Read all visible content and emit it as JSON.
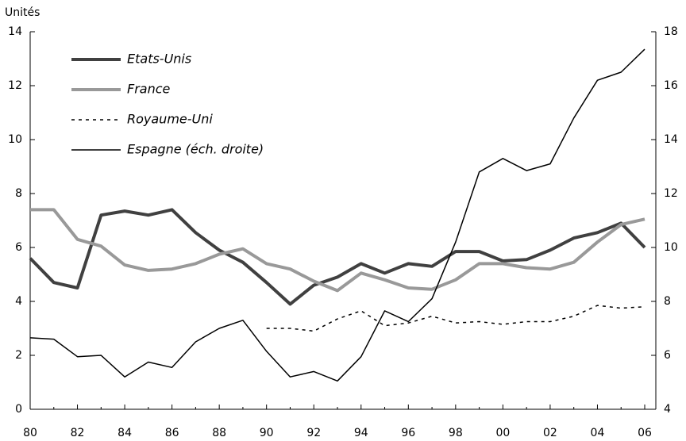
{
  "chart_data": {
    "type": "line",
    "y_label": "Unités",
    "categories": [
      "80",
      null,
      "82",
      null,
      "84",
      null,
      "86",
      null,
      "88",
      null,
      "90",
      null,
      "92",
      null,
      "94",
      null,
      "96",
      null,
      "98",
      null,
      "00",
      null,
      "02",
      null,
      "04",
      null,
      "06"
    ],
    "ylim": [
      0,
      14
    ],
    "yticks": [
      0,
      2,
      4,
      6,
      8,
      10,
      12,
      14
    ],
    "y2lim": [
      4,
      18
    ],
    "y2ticks": [
      4,
      6,
      8,
      10,
      12,
      14,
      16,
      18
    ],
    "legend": "top-left",
    "series": [
      {
        "name": "Etats-Unis",
        "color": "#404040",
        "width": 4,
        "dashed": false,
        "values": [
          5.6,
          4.7,
          4.5,
          7.2,
          7.35,
          7.2,
          7.4,
          6.55,
          5.9,
          5.45,
          4.7,
          3.9,
          4.6,
          4.9,
          5.4,
          5.05,
          5.4,
          5.3,
          5.85,
          5.85,
          5.5,
          5.55,
          5.9,
          6.35,
          6.55,
          6.9,
          6.0
        ]
      },
      {
        "name": "France",
        "color": "#999999",
        "width": 4,
        "dashed": false,
        "values": [
          7.4,
          7.4,
          6.3,
          6.05,
          5.35,
          5.15,
          5.2,
          5.4,
          5.75,
          5.95,
          5.4,
          5.2,
          4.75,
          4.4,
          5.05,
          4.8,
          4.5,
          4.45,
          4.8,
          5.4,
          5.4,
          5.25,
          5.2,
          5.45,
          6.2,
          6.85,
          7.05
        ]
      },
      {
        "name": "Royaume-Uni",
        "color": "#000000",
        "width": 1.5,
        "dashed": true,
        "values": [
          null,
          null,
          null,
          null,
          null,
          null,
          null,
          null,
          null,
          null,
          3.0,
          3.0,
          2.9,
          3.35,
          3.65,
          3.1,
          3.2,
          3.45,
          3.2,
          3.25,
          3.15,
          3.25,
          3.25,
          3.45,
          3.85,
          3.75,
          3.8
        ]
      },
      {
        "name": "Espagne (éch. droite)",
        "color": "#000000",
        "width": 1.5,
        "dashed": false,
        "axis": "y2",
        "values": [
          6.65,
          6.6,
          5.95,
          6.0,
          5.2,
          5.75,
          5.55,
          6.5,
          7.0,
          7.3,
          6.15,
          5.2,
          5.4,
          5.05,
          5.95,
          7.65,
          7.25,
          8.1,
          10.2,
          12.8,
          13.3,
          12.85,
          13.1,
          14.8,
          16.2,
          16.5,
          17.35
        ]
      }
    ]
  }
}
